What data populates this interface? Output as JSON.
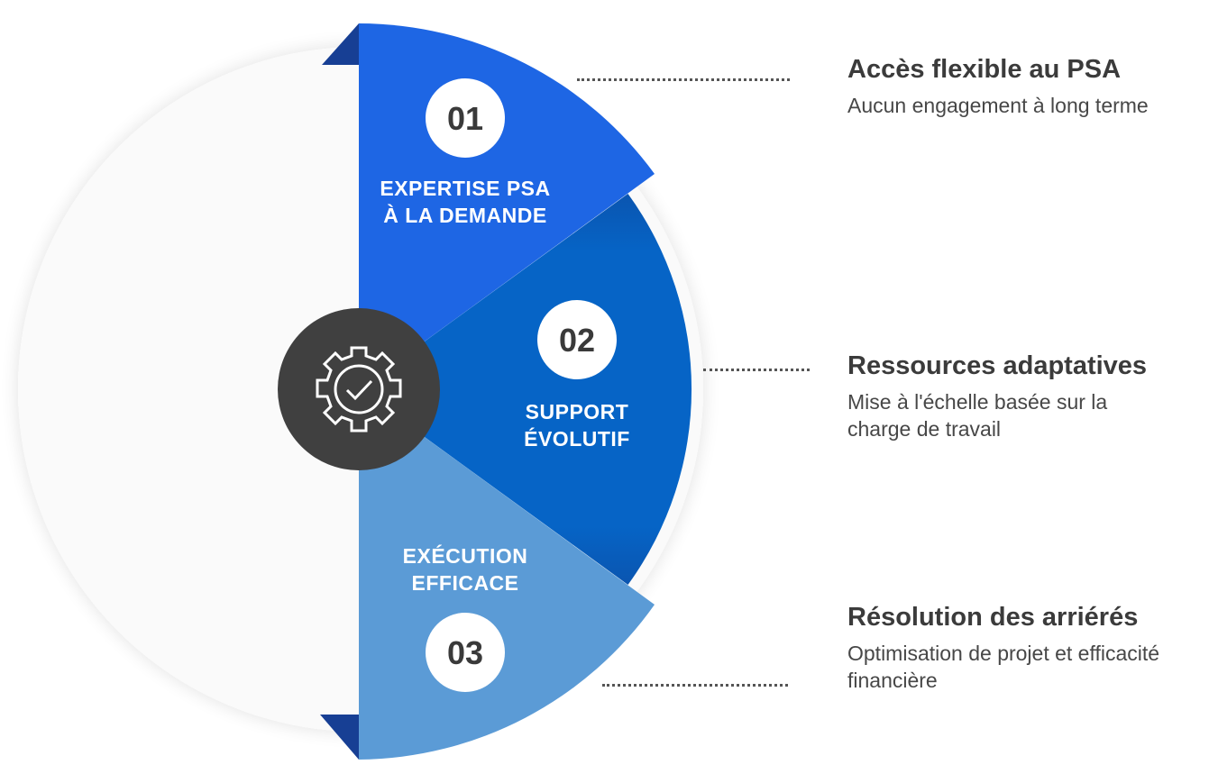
{
  "colors": {
    "segment_1": "#1e66e4",
    "segment_2": "#0664c6",
    "segment_3": "#5b9bd6",
    "fold": "#173f94",
    "hub": "#404040",
    "background_disc": "#fafafa",
    "text_dark": "#3b3b3b"
  },
  "hub": {
    "icon": "gear-check-icon"
  },
  "segments": [
    {
      "number": "01",
      "label_line1": "EXPERTISE PSA",
      "label_line2": "À LA DEMANDE"
    },
    {
      "number": "02",
      "label_line1": "SUPPORT",
      "label_line2": "ÉVOLUTIF"
    },
    {
      "number": "03",
      "label_line1": "EXÉCUTION",
      "label_line2": "EFFICACE"
    }
  ],
  "items": [
    {
      "title": "Accès flexible au PSA",
      "description": "Aucun engagement à long terme"
    },
    {
      "title": "Ressources adaptatives",
      "description": "Mise à l'échelle basée sur la charge de travail"
    },
    {
      "title": "Résolution des arriérés",
      "description": "Optimisation de projet et efficacité financière"
    }
  ]
}
